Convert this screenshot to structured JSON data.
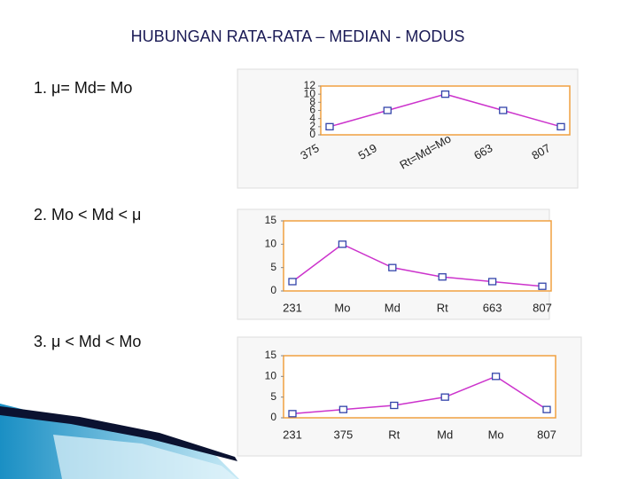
{
  "title": "HUBUNGAN RATA-RATA – MEDIAN - MODUS",
  "items": [
    "1.  μ= Md= Mo",
    "2.  Mo < Md < μ",
    "3.    μ < Md < Mo"
  ],
  "chart_data": [
    {
      "type": "line",
      "categories": [
        "375",
        "519",
        "Rt=Md=Mo",
        "663",
        "807"
      ],
      "values": [
        2,
        6,
        10,
        6,
        2
      ],
      "ylim": [
        0,
        12
      ],
      "yticks": [
        0,
        2,
        4,
        6,
        8,
        10,
        12
      ],
      "color": "#cc33cc",
      "marker_color": "#3344aa"
    },
    {
      "type": "line",
      "categories": [
        "231",
        "Mo",
        "Md",
        "Rt",
        "663",
        "807"
      ],
      "values": [
        2,
        10,
        5,
        3,
        2,
        1
      ],
      "ylim": [
        0,
        15
      ],
      "yticks": [
        0,
        5,
        10,
        15
      ],
      "color": "#cc33cc",
      "marker_color": "#3344aa"
    },
    {
      "type": "line",
      "categories": [
        "231",
        "375",
        "Rt",
        "Md",
        "Mo",
        "807"
      ],
      "values": [
        1,
        2,
        3,
        5,
        10,
        2
      ],
      "ylim": [
        0,
        15
      ],
      "yticks": [
        0,
        5,
        10,
        15
      ],
      "color": "#cc33cc",
      "marker_color": "#3344aa"
    }
  ]
}
